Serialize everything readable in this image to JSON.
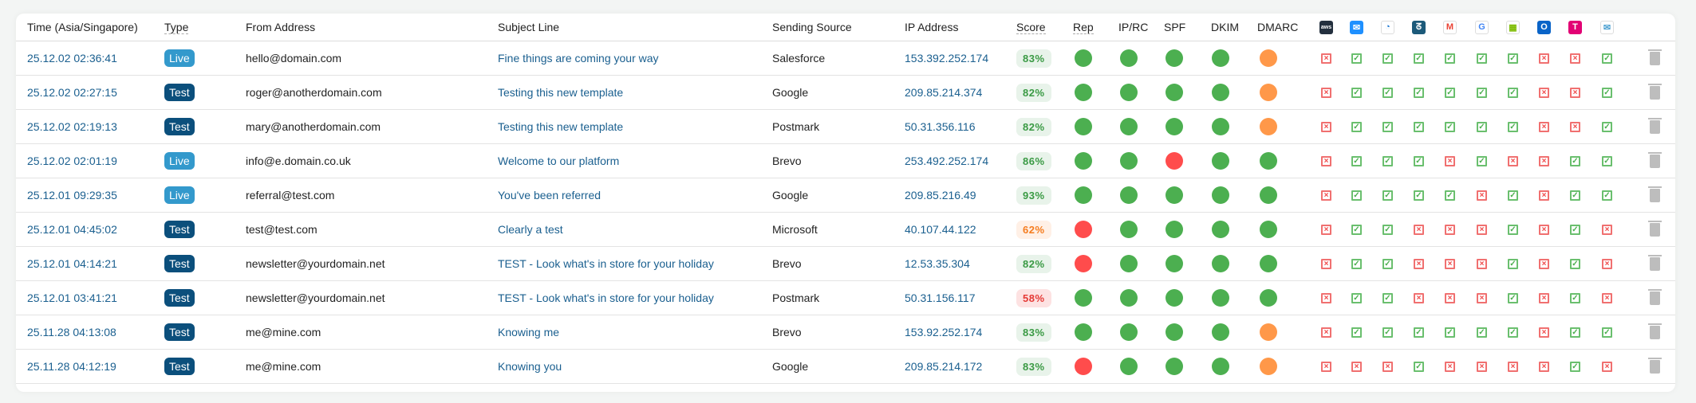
{
  "headers": {
    "time": "Time (Asia/Singapore)",
    "type": "Type",
    "from": "From Address",
    "subject": "Subject Line",
    "source": "Sending Source",
    "ip": "IP Address",
    "score": "Score",
    "rep": "Rep",
    "iprc": "IP/RC",
    "spf": "SPF",
    "dkim": "DKIM",
    "dmarc": "DMARC"
  },
  "providers": [
    "aws-icon",
    "apple-mail-icon",
    "mail-client-icon",
    "gmx-icon",
    "gmail-icon",
    "google-icon",
    "microsoft-icon",
    "outlook-icon",
    "t-online-icon",
    "open-envelope-icon"
  ],
  "colors": {
    "live": "#3399cc",
    "test": "#0b4f7c",
    "green": "#4caf50",
    "orange": "#ff9849",
    "red": "#ff4c4c"
  },
  "rows": [
    {
      "time": "25.12.02 02:36:41",
      "type": "Live",
      "from": "hello@domain.com",
      "subject": "Fine things are coming your way",
      "source": "Salesforce",
      "ip": "153.392.252.174",
      "score": "83%",
      "level": "good",
      "checks": [
        "green",
        "green",
        "green",
        "green",
        "orange"
      ],
      "providers": [
        0,
        1,
        1,
        1,
        1,
        1,
        1,
        0,
        0,
        1
      ]
    },
    {
      "time": "25.12.02 02:27:15",
      "type": "Test",
      "from": "roger@anotherdomain.com",
      "subject": "Testing this new template",
      "source": "Google",
      "ip": "209.85.214.374",
      "score": "82%",
      "level": "good",
      "checks": [
        "green",
        "green",
        "green",
        "green",
        "orange"
      ],
      "providers": [
        0,
        1,
        1,
        1,
        1,
        1,
        1,
        0,
        0,
        1
      ]
    },
    {
      "time": "25.12.02 02:19:13",
      "type": "Test",
      "from": "mary@anotherdomain.com",
      "subject": "Testing this new template",
      "source": "Postmark",
      "ip": "50.31.356.116",
      "score": "82%",
      "level": "good",
      "checks": [
        "green",
        "green",
        "green",
        "green",
        "orange"
      ],
      "providers": [
        0,
        1,
        1,
        1,
        1,
        1,
        1,
        0,
        0,
        1
      ]
    },
    {
      "time": "25.12.02 02:01:19",
      "type": "Live",
      "from": "info@e.domain.co.uk",
      "subject": "Welcome to our platform",
      "source": "Brevo",
      "ip": "253.492.252.174",
      "score": "86%",
      "level": "good",
      "checks": [
        "green",
        "green",
        "red",
        "green",
        "green"
      ],
      "providers": [
        0,
        1,
        1,
        1,
        0,
        1,
        0,
        0,
        1,
        1
      ]
    },
    {
      "time": "25.12.01 09:29:35",
      "type": "Live",
      "from": "referral@test.com",
      "subject": "You've been referred",
      "source": "Google",
      "ip": "209.85.216.49",
      "score": "93%",
      "level": "good",
      "checks": [
        "green",
        "green",
        "green",
        "green",
        "green"
      ],
      "providers": [
        0,
        1,
        1,
        1,
        1,
        0,
        1,
        0,
        1,
        1
      ]
    },
    {
      "time": "25.12.01 04:45:02",
      "type": "Test",
      "from": "test@test.com",
      "subject": "Clearly a test",
      "source": "Microsoft",
      "ip": "40.107.44.122",
      "score": "62%",
      "level": "warn",
      "checks": [
        "red",
        "green",
        "green",
        "green",
        "green"
      ],
      "providers": [
        0,
        1,
        1,
        0,
        0,
        0,
        1,
        0,
        1,
        0
      ]
    },
    {
      "time": "25.12.01 04:14:21",
      "type": "Test",
      "from": "newsletter@yourdomain.net",
      "subject": "TEST - Look what's in store for your holiday",
      "source": "Brevo",
      "ip": "12.53.35.304",
      "score": "82%",
      "level": "good",
      "checks": [
        "red",
        "green",
        "green",
        "green",
        "green"
      ],
      "providers": [
        0,
        1,
        1,
        0,
        0,
        0,
        1,
        0,
        1,
        0
      ]
    },
    {
      "time": "25.12.01 03:41:21",
      "type": "Test",
      "from": "newsletter@yourdomain.net",
      "subject": "TEST - Look what's in store for your holiday",
      "source": "Postmark",
      "ip": "50.31.156.117",
      "score": "58%",
      "level": "bad",
      "checks": [
        "green",
        "green",
        "green",
        "green",
        "green"
      ],
      "providers": [
        0,
        1,
        1,
        0,
        0,
        0,
        1,
        0,
        1,
        0
      ]
    },
    {
      "time": "25.11.28 04:13:08",
      "type": "Test",
      "from": "me@mine.com",
      "subject": "Knowing me",
      "source": "Brevo",
      "ip": "153.92.252.174",
      "score": "83%",
      "level": "good",
      "checks": [
        "green",
        "green",
        "green",
        "green",
        "orange"
      ],
      "providers": [
        0,
        1,
        1,
        1,
        1,
        1,
        1,
        0,
        1,
        1
      ]
    },
    {
      "time": "25.11.28 04:12:19",
      "type": "Test",
      "from": "me@mine.com",
      "subject": "Knowing you",
      "source": "Google",
      "ip": "209.85.214.172",
      "score": "83%",
      "level": "good",
      "checks": [
        "red",
        "green",
        "green",
        "green",
        "orange"
      ],
      "providers": [
        0,
        0,
        0,
        1,
        0,
        0,
        0,
        0,
        1,
        0
      ]
    }
  ]
}
